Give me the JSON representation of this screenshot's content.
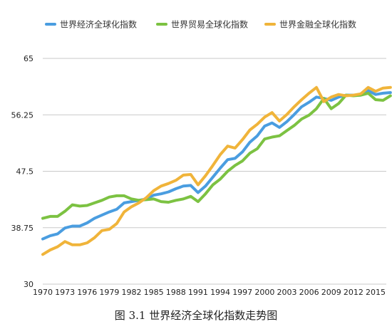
{
  "colors": {
    "economic": "#4a9de0",
    "trade": "#7cc242",
    "finance": "#f0b43a"
  },
  "caption": "图 3.1  世界经济全球化指数走势图",
  "chart_data": {
    "type": "line",
    "title": "",
    "xlabel": "",
    "ylabel": "",
    "ylim": [
      30,
      65
    ],
    "yticks": [
      30,
      38.75,
      47.5,
      56.25,
      65
    ],
    "ytick_labels": [
      "30",
      "38.75",
      "47.5",
      "56.25",
      "65"
    ],
    "x_tick_labels": [
      "1970",
      "1973",
      "1976",
      "1979",
      "1982",
      "1985",
      "1988",
      "1991",
      "1994",
      "1997",
      "2000",
      "2003",
      "2006",
      "2009",
      "2012",
      "2015"
    ],
    "x": [
      1970,
      1971,
      1972,
      1973,
      1974,
      1975,
      1976,
      1977,
      1978,
      1979,
      1980,
      1981,
      1982,
      1983,
      1984,
      1985,
      1986,
      1987,
      1988,
      1989,
      1990,
      1991,
      1992,
      1993,
      1994,
      1995,
      1996,
      1997,
      1998,
      1999,
      2000,
      2001,
      2002,
      2003,
      2004,
      2005,
      2006,
      2007,
      2008,
      2009,
      2010,
      2011,
      2012,
      2013,
      2014,
      2015,
      2016,
      2017
    ],
    "grid": true,
    "legend_position": "top",
    "series": [
      {
        "name": "世界经济全球化指数",
        "color_key": "economic",
        "values": [
          37.0,
          37.5,
          37.8,
          38.7,
          39.0,
          39.0,
          39.5,
          40.2,
          40.7,
          41.2,
          41.6,
          42.6,
          42.8,
          43.0,
          43.2,
          43.8,
          44.0,
          44.3,
          44.8,
          45.2,
          45.3,
          44.2,
          45.2,
          46.6,
          48.0,
          49.3,
          49.5,
          50.5,
          52.0,
          53.0,
          54.5,
          55.0,
          54.3,
          55.2,
          56.3,
          57.5,
          58.2,
          59.0,
          58.8,
          58.5,
          59.0,
          59.3,
          59.3,
          59.3,
          60.0,
          59.4,
          59.6,
          59.7
        ]
      },
      {
        "name": "世界贸易全球化指数",
        "color_key": "trade",
        "values": [
          40.2,
          40.5,
          40.5,
          41.3,
          42.3,
          42.1,
          42.2,
          42.6,
          43.0,
          43.5,
          43.7,
          43.7,
          43.2,
          43.0,
          43.1,
          43.2,
          42.8,
          42.7,
          43.0,
          43.2,
          43.6,
          42.8,
          44.0,
          45.4,
          46.3,
          47.5,
          48.4,
          49.1,
          50.3,
          51.0,
          52.5,
          52.8,
          53.0,
          53.8,
          54.6,
          55.6,
          56.2,
          57.2,
          58.8,
          57.2,
          58.0,
          59.3,
          59.2,
          59.3,
          59.6,
          58.6,
          58.5,
          59.2
        ]
      },
      {
        "name": "世界金融全球化指数",
        "color_key": "finance",
        "values": [
          34.6,
          35.3,
          35.8,
          36.6,
          36.1,
          36.1,
          36.4,
          37.2,
          38.3,
          38.5,
          39.4,
          41.2,
          42.0,
          42.6,
          43.4,
          44.5,
          45.2,
          45.6,
          46.1,
          46.9,
          47.0,
          45.4,
          46.8,
          48.4,
          50.1,
          51.4,
          51.1,
          52.4,
          53.9,
          54.8,
          55.9,
          56.6,
          55.3,
          56.3,
          57.5,
          58.6,
          59.6,
          60.5,
          58.3,
          59.0,
          59.4,
          59.2,
          59.3,
          59.5,
          60.5,
          59.9,
          60.4,
          60.5
        ]
      }
    ]
  }
}
